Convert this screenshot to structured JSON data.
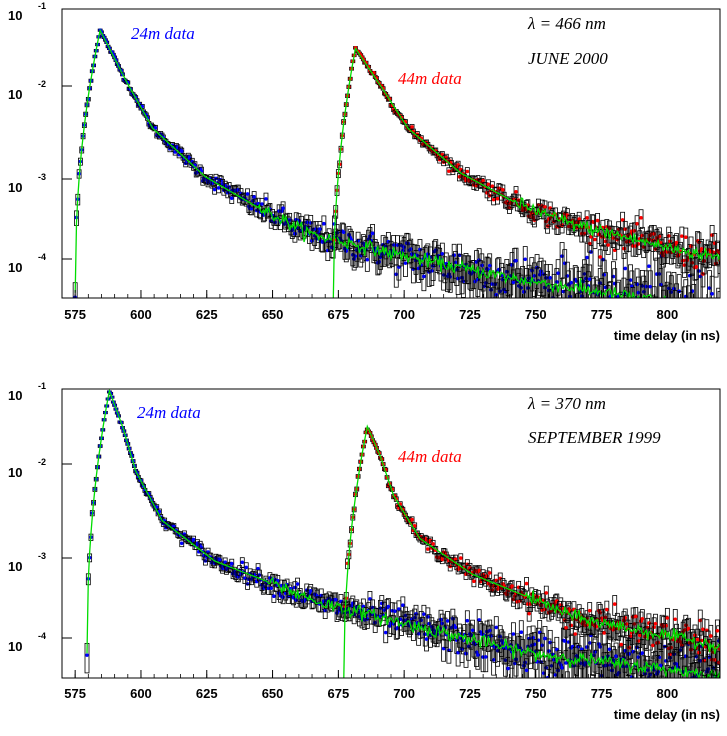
{
  "colors": {
    "fit": "#00dd00",
    "series_24m": "#0000ff",
    "series_44m": "#ff0000",
    "error_bars": "#000000",
    "frame": "#000000"
  },
  "chart_data": [
    {
      "type": "scatter",
      "yscale": "log",
      "xlim": [
        570,
        820
      ],
      "ylim": [
        3e-05,
        0.1
      ],
      "xticks": [
        "575",
        "600",
        "625",
        "650",
        "675",
        "700",
        "725",
        "750",
        "775",
        "800"
      ],
      "yticks": [
        {
          "base": "10",
          "exp": "-1"
        },
        {
          "base": "10",
          "exp": "-2"
        },
        {
          "base": "10",
          "exp": "-3"
        },
        {
          "base": "10",
          "exp": "-4"
        }
      ],
      "xlabel": "time delay (in ns)",
      "annotations": {
        "wavelength": "λ = 466 nm",
        "date": "JUNE 2000"
      },
      "series": [
        {
          "name": "24m data",
          "t_start": 575,
          "t_peak": 584.5,
          "peak": 0.055,
          "color": "blue",
          "decay": [
            {
              "dt": 0,
              "y": 0.055
            },
            {
              "dt": 10,
              "y": 0.013
            },
            {
              "dt": 20,
              "y": 0.0035
            },
            {
              "dt": 40,
              "y": 0.0009
            },
            {
              "dt": 60,
              "y": 0.00038
            },
            {
              "dt": 80,
              "y": 0.00018
            },
            {
              "dt": 120,
              "y": 9e-05
            },
            {
              "dt": 160,
              "y": 5e-05
            },
            {
              "dt": 240,
              "y": 2e-05
            }
          ]
        },
        {
          "name": "44m data",
          "t_start": 673,
          "t_peak": 681.5,
          "peak": 0.033,
          "color": "red",
          "decay": [
            {
              "dt": 0,
              "y": 0.033
            },
            {
              "dt": 10,
              "y": 0.011
            },
            {
              "dt": 20,
              "y": 0.0035
            },
            {
              "dt": 40,
              "y": 0.001
            },
            {
              "dt": 60,
              "y": 0.00045
            },
            {
              "dt": 80,
              "y": 0.00025
            },
            {
              "dt": 120,
              "y": 0.00012
            },
            {
              "dt": 160,
              "y": 7e-05
            }
          ]
        }
      ]
    },
    {
      "type": "scatter",
      "yscale": "log",
      "xlim": [
        570,
        820
      ],
      "ylim": [
        3e-05,
        0.1
      ],
      "xticks": [
        "575",
        "600",
        "625",
        "650",
        "675",
        "700",
        "725",
        "750",
        "775",
        "800"
      ],
      "yticks": [
        {
          "base": "10",
          "exp": "-1"
        },
        {
          "base": "10",
          "exp": "-2"
        },
        {
          "base": "10",
          "exp": "-3"
        },
        {
          "base": "10",
          "exp": "-4"
        }
      ],
      "xlabel": "time delay (in ns)",
      "annotations": {
        "wavelength": "λ = 370 nm",
        "date": "SEPTEMBER 1999"
      },
      "series": [
        {
          "name": "24m data",
          "t_start": 579.5,
          "t_peak": 588,
          "peak": 0.095,
          "color": "blue",
          "decay": [
            {
              "dt": 0,
              "y": 0.095
            },
            {
              "dt": 5,
              "y": 0.035
            },
            {
              "dt": 10,
              "y": 0.01
            },
            {
              "dt": 20,
              "y": 0.0025
            },
            {
              "dt": 40,
              "y": 0.0008
            },
            {
              "dt": 60,
              "y": 0.00045
            },
            {
              "dt": 80,
              "y": 0.00025
            },
            {
              "dt": 120,
              "y": 0.00012
            },
            {
              "dt": 160,
              "y": 6e-05
            },
            {
              "dt": 240,
              "y": 3e-05
            }
          ]
        },
        {
          "name": "44m data",
          "t_start": 677,
          "t_peak": 686,
          "peak": 0.035,
          "color": "red",
          "decay": [
            {
              "dt": 0,
              "y": 0.035
            },
            {
              "dt": 5,
              "y": 0.015
            },
            {
              "dt": 10,
              "y": 0.005
            },
            {
              "dt": 20,
              "y": 0.0015
            },
            {
              "dt": 40,
              "y": 0.00055
            },
            {
              "dt": 60,
              "y": 0.0003
            },
            {
              "dt": 80,
              "y": 0.00016
            },
            {
              "dt": 120,
              "y": 9e-05
            },
            {
              "dt": 160,
              "y": 5e-05
            }
          ]
        }
      ]
    }
  ]
}
